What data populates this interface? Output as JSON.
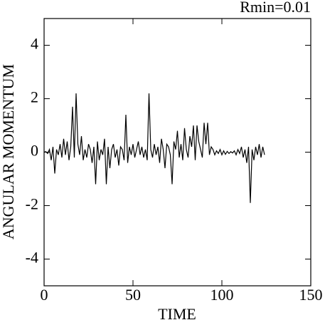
{
  "chart_data": {
    "type": "line",
    "title": "Rmin=0.01",
    "xlabel": "TIME",
    "ylabel": "ANGULAR MOMENTUM",
    "xlim": [
      0,
      150
    ],
    "xticks": [
      0,
      50,
      100,
      150
    ],
    "ylim": [
      -5,
      5
    ],
    "yticks": [
      -4,
      -2,
      0,
      2,
      4
    ],
    "series": [
      {
        "color": "#000000",
        "x": [
          0,
          1,
          2,
          3,
          4,
          5,
          6,
          7,
          8,
          9,
          10,
          11,
          12,
          13,
          14,
          15,
          16,
          17,
          18,
          19,
          20,
          21,
          22,
          23,
          24,
          25,
          26,
          27,
          28,
          29,
          30,
          31,
          32,
          33,
          34,
          35,
          36,
          37,
          38,
          39,
          40,
          41,
          42,
          43,
          44,
          45,
          46,
          47,
          48,
          49,
          50,
          51,
          52,
          53,
          54,
          55,
          56,
          57,
          58,
          59,
          60,
          61,
          62,
          63,
          64,
          65,
          66,
          67,
          68,
          69,
          70,
          71,
          72,
          73,
          74,
          75,
          76,
          77,
          78,
          79,
          80,
          81,
          82,
          83,
          84,
          85,
          86,
          87,
          88,
          89,
          90,
          91,
          92,
          93,
          94,
          95,
          96,
          97,
          98,
          99,
          100,
          101,
          102,
          103,
          104,
          105,
          106,
          107,
          108,
          109,
          110,
          111,
          112,
          113,
          114,
          115,
          116,
          117,
          118,
          119,
          120,
          121,
          122,
          123,
          124
        ],
        "values": [
          0,
          0.02,
          -0.05,
          0.1,
          -0.3,
          0.2,
          -0.8,
          0.1,
          -0.1,
          0.3,
          -0.2,
          0.5,
          -0.1,
          0.4,
          -0.3,
          0.2,
          1.7,
          -0.2,
          2.2,
          0.3,
          -0.1,
          0.6,
          -0.3,
          0.1,
          -0.2,
          0.3,
          0.1,
          -0.4,
          0.2,
          -1.2,
          0.4,
          -0.3,
          0.1,
          -0.1,
          0.5,
          -1.2,
          0.2,
          -0.6,
          0.1,
          0.3,
          -0.2,
          0.1,
          -0.5,
          0.2,
          0.1,
          -0.3,
          1.4,
          -0.4,
          0.2,
          -0.1,
          0.3,
          -0.2,
          0.1,
          0.4,
          -0.1,
          0.2,
          -0.2,
          0.1,
          -0.3,
          2.2,
          0.1,
          -0.2,
          0.3,
          -0.1,
          0.2,
          -0.4,
          0.5,
          0.1,
          -0.6,
          0.3,
          0.2,
          -0.1,
          -1.2,
          0.4,
          0.1,
          0.8,
          -0.2,
          0.3,
          -0.3,
          0.9,
          0.1,
          -0.2,
          0.6,
          0.2,
          1.0,
          -0.3,
          1.0,
          0.4,
          0.1,
          -0.2,
          1.1,
          0.3,
          1.1,
          -0.1,
          0.2,
          0.1,
          -0.1,
          0.05,
          -0.05,
          0.1,
          -0.1,
          0.05,
          -0.08,
          0.03,
          -0.05,
          0.02,
          -0.03,
          0.05,
          -0.1,
          0.1,
          -0.05,
          0.2,
          -0.2,
          0.1,
          -0.4,
          0.2,
          -1.9,
          0.1,
          -0.3,
          0.2,
          -0.1,
          0.3,
          -0.2,
          0.2,
          -0.1
        ]
      }
    ]
  }
}
